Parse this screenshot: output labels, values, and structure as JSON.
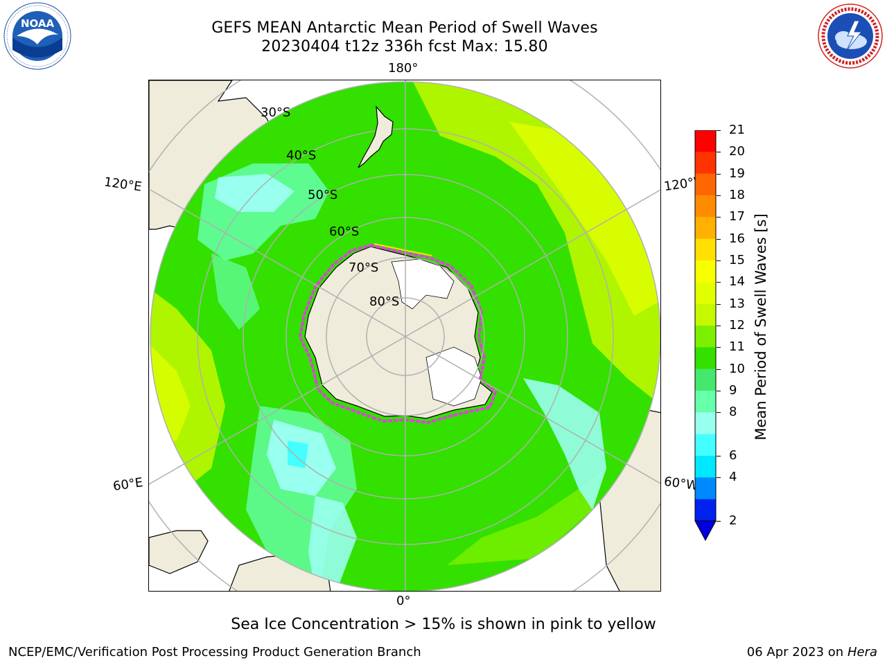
{
  "title": {
    "line1": "GEFS MEAN Antarctic Mean Period of Swell Waves",
    "line2": "20230404 t12z 336h fcst   Max: 15.80"
  },
  "map": {
    "projection": "south-polar stereographic",
    "longitude_labels": {
      "top": "180°",
      "bottom": "0°",
      "left_upper": "120°E",
      "left_lower": "60°E",
      "right_upper": "120°W",
      "right_lower": "60°W"
    },
    "latitude_labels": [
      "30°S",
      "40°S",
      "50°S",
      "60°S",
      "70°S",
      "80°S"
    ],
    "colors": {
      "land": "#efecdc",
      "ocean_dominant": "#33e000",
      "sea_ice_edge": "#e040e0",
      "grid": "#b0b0b0"
    }
  },
  "colorbar": {
    "label": "Mean Period of Swell Waves [s]",
    "ticks": [
      "21",
      "20",
      "19",
      "18",
      "17",
      "16",
      "15",
      "14",
      "13",
      "12",
      "11",
      "10",
      "9",
      "8",
      "6",
      "4",
      "2"
    ],
    "colors": [
      "#ff0000",
      "#ff3300",
      "#ff6600",
      "#ff8c00",
      "#ffb000",
      "#ffe000",
      "#f8ff00",
      "#e2ff00",
      "#c6f800",
      "#7cf000",
      "#33e000",
      "#44e86e",
      "#66ffaa",
      "#99ffee",
      "#44ffff",
      "#00e8ff",
      "#0088ff",
      "#0022ee"
    ],
    "extend_color": "#0000e0"
  },
  "ice_note": "Sea Ice Concentration > 15% is shown in pink to yellow",
  "footer": {
    "left": "NCEP/EMC/Verification Post Processing Product Generation Branch",
    "right_prefix": "06 Apr 2023 on ",
    "right_host": "Hera"
  }
}
